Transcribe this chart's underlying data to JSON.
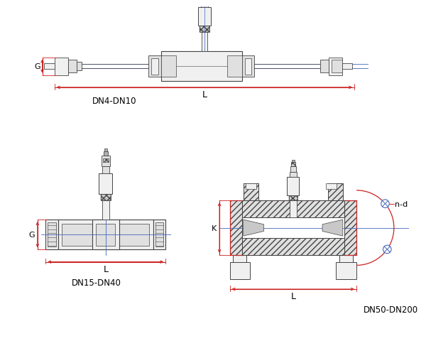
{
  "bg_color": "#ffffff",
  "lc": "#444444",
  "rc": "#cc2222",
  "bc": "#4466bb",
  "gray1": "#f0f0f0",
  "gray2": "#e0e0e0",
  "gray3": "#c8c8c8",
  "gray4": "#b0b0b0",
  "label_dn4": "DN4-DN10",
  "label_dn15": "DN15-DN40",
  "label_dn50": "DN50-DN200",
  "label_L": "L",
  "label_G": "G",
  "label_K": "K",
  "label_nd": "n-d",
  "figsize": [
    6.0,
    4.81
  ],
  "dpi": 100
}
